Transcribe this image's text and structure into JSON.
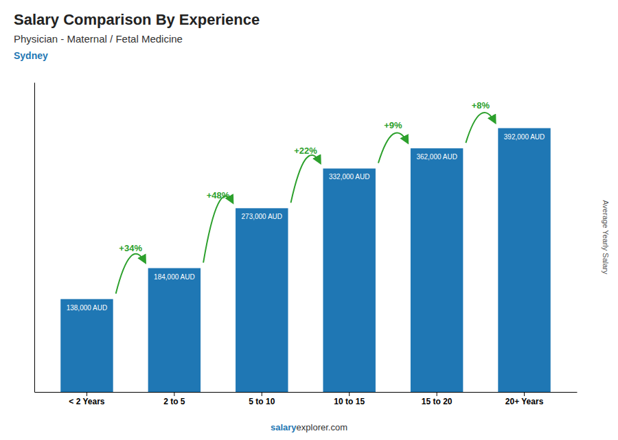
{
  "chart_data": {
    "type": "bar",
    "title": "Salary Comparison By Experience",
    "subtitle": "Physician - Maternal / Fetal Medicine",
    "location": "Sydney",
    "y_label": "Average Yearly Salary",
    "footer": [
      "salary",
      "explorer.com"
    ],
    "categories": [
      "< 2 Years",
      "2 to 5",
      "5 to 10",
      "10 to 15",
      "15 to 20",
      "20+ Years"
    ],
    "values": [
      138000,
      184000,
      273000,
      332000,
      362000,
      392000
    ],
    "value_labels": [
      "138,000 AUD",
      "184,000 AUD",
      "273,000 AUD",
      "332,000 AUD",
      "362,000 AUD",
      "392,000 AUD"
    ],
    "data_labels": true,
    "annotations": [
      "+34%",
      "+48%",
      "+22%",
      "+9%",
      "+8%"
    ],
    "ylim": [
      0,
      460000
    ],
    "tick_labels": "x",
    "grid": false
  }
}
